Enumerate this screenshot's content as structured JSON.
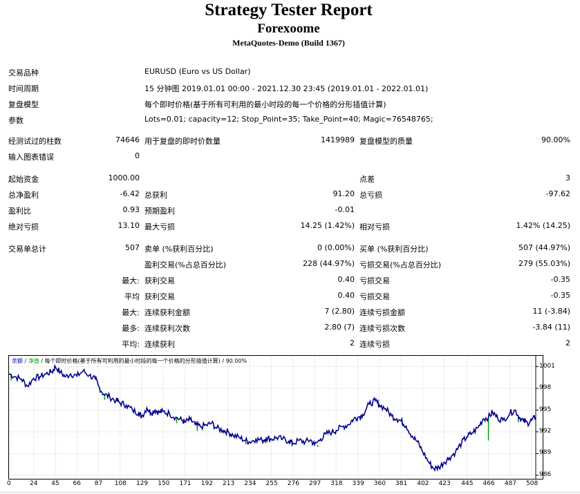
{
  "header": {
    "title": "Strategy Tester Report",
    "subtitle": "Forexoome",
    "build": "MetaQuotes-Demo (Build 1367)"
  },
  "info": [
    {
      "label": "交易品种",
      "value": "EURUSD (Euro vs US Dollar)"
    },
    {
      "label": "时间周期",
      "value": "15 分钟图 2019.01.01 00:00 - 2021.12.30 23:45 (2019.01.01 - 2022.01.01)"
    },
    {
      "label": "复盘模型",
      "value": "每个即时价格(基于所有可利用的最小时段的每一个价格的分形插值计算)"
    },
    {
      "label": "参数",
      "value": "Lots=0.01; capacity=12; Stop_Point=35; Take_Point=40; Magic=76548765;"
    }
  ],
  "stats": {
    "bars_label": "经测试过的柱数",
    "bars_value": "74646",
    "ticks_label": "用于复盘的即时价数量",
    "ticks_value": "1419989",
    "quality_label": "复盘模型的质量",
    "quality_value": "90.00%",
    "errors_label": "输入图表错误",
    "errors_value": "0",
    "deposit_label": "起始资金",
    "deposit_value": "1000.00",
    "spread_label": "点差",
    "spread_value": "3",
    "net_label": "总净盈利",
    "net_value": "-6.42",
    "gross_profit_label": "总获利",
    "gross_profit_value": "91.20",
    "gross_loss_label": "总亏损",
    "gross_loss_value": "-97.62",
    "pf_label": "盈利比",
    "pf_value": "0.93",
    "payoff_label": "预期盈利",
    "payoff_value": "-0.01",
    "abs_dd_label": "绝对亏损",
    "abs_dd_value": "13.10",
    "max_dd_label": "最大亏损",
    "max_dd_value": "14.25 (1.42%)",
    "rel_dd_label": "相对亏损",
    "rel_dd_value": "1.42% (14.25)",
    "total_label": "交易单总计",
    "total_value": "507",
    "short_label": "卖单 (%获利百分比)",
    "short_value": "0 (0.00%)",
    "long_label": "买单 (%获利百分比)",
    "long_value": "507 (44.97%)",
    "win_label": "盈利交易(%占总百分比)",
    "win_value": "228 (44.97%)",
    "loss_label": "亏损交易(%占总百分比)",
    "loss_value": "279 (55.03%)",
    "max_prefix": "最大:",
    "max_win_label": "获利交易",
    "max_win_value": "0.40",
    "max_loss_label": "亏损交易",
    "max_loss_value": "-0.35",
    "avg_prefix": "平均",
    "avg_win_label": "获利交易",
    "avg_win_value": "0.40",
    "avg_loss_label": "亏损交易",
    "avg_loss_value": "-0.35",
    "max2_prefix": "最大:",
    "cons_win_amt_label": "连续获利金额",
    "cons_win_amt_value": "7 (2.80)",
    "cons_loss_amt_label": "连续亏损金额",
    "cons_loss_amt_value": "11 (-3.84)",
    "most_prefix": "最多:",
    "cons_win_cnt_label": "连续获利次数",
    "cons_win_cnt_value": "2.80 (7)",
    "cons_loss_cnt_label": "连续亏损次数",
    "cons_loss_cnt_value": "-3.84 (11)",
    "avg2_prefix": "平均:",
    "avg_cons_win_label": "连续获利",
    "avg_cons_win_value": "2",
    "avg_cons_loss_label": "连续亏损",
    "avg_cons_loss_value": "2"
  },
  "chart_caption": {
    "balance": "余额",
    "sep1": " / ",
    "equity": "净值",
    "rest": " / 每个即时价格(基于所有可利用的最小时段的每一个价格的分形插值计算) / 90.00%"
  },
  "colors": {
    "balance": "#00008b",
    "equity": "#00a000",
    "caption_balance": "#0000cc",
    "caption_equity": "#00a000"
  },
  "chart_data": {
    "type": "line",
    "x_ticks": [
      "0",
      "24",
      "45",
      "66",
      "87",
      "108",
      "129",
      "150",
      "171",
      "192",
      "213",
      "234",
      "255",
      "276",
      "297",
      "318",
      "339",
      "360",
      "381",
      "402",
      "423",
      "445",
      "466",
      "487",
      "508"
    ],
    "y_ticks": [
      "1001",
      "998",
      "995",
      "992",
      "989",
      "986"
    ],
    "xlim": [
      0,
      512
    ],
    "ylim": [
      985.7,
      1002.3
    ],
    "series": [
      {
        "points": [
          [
            0,
            1000.0
          ],
          [
            6,
            999.6
          ],
          [
            12,
            999.3
          ],
          [
            18,
            998.3
          ],
          [
            24,
            999.4
          ],
          [
            30,
            999.6
          ],
          [
            36,
            1000.0
          ],
          [
            42,
            1000.3
          ],
          [
            45,
            1001.0
          ],
          [
            50,
            1000.2
          ],
          [
            55,
            999.6
          ],
          [
            60,
            1000.0
          ],
          [
            66,
            999.7
          ],
          [
            72,
            1000.4
          ],
          [
            78,
            999.8
          ],
          [
            84,
            999.3
          ],
          [
            87,
            998.3
          ],
          [
            92,
            997.2
          ],
          [
            98,
            996.8
          ],
          [
            104,
            996.3
          ],
          [
            108,
            996.0
          ],
          [
            114,
            995.7
          ],
          [
            120,
            995.0
          ],
          [
            126,
            994.6
          ],
          [
            129,
            994.1
          ],
          [
            134,
            995.3
          ],
          [
            138,
            994.6
          ],
          [
            142,
            995.0
          ],
          [
            146,
            994.7
          ],
          [
            150,
            994.8
          ],
          [
            156,
            994.5
          ],
          [
            162,
            994.0
          ],
          [
            168,
            993.6
          ],
          [
            171,
            993.3
          ],
          [
            176,
            993.7
          ],
          [
            181,
            993.0
          ],
          [
            186,
            992.7
          ],
          [
            192,
            992.9
          ],
          [
            197,
            993.2
          ],
          [
            202,
            992.5
          ],
          [
            208,
            992.2
          ],
          [
            213,
            992.0
          ],
          [
            218,
            991.5
          ],
          [
            224,
            991.2
          ],
          [
            230,
            990.8
          ],
          [
            234,
            990.6
          ],
          [
            240,
            991.0
          ],
          [
            246,
            990.8
          ],
          [
            250,
            991.1
          ],
          [
            255,
            991.0
          ],
          [
            260,
            991.2
          ],
          [
            266,
            991.0
          ],
          [
            272,
            990.7
          ],
          [
            276,
            990.4
          ],
          [
            282,
            990.8
          ],
          [
            288,
            990.6
          ],
          [
            293,
            990.9
          ],
          [
            297,
            990.2
          ],
          [
            303,
            991.0
          ],
          [
            308,
            991.7
          ],
          [
            314,
            992.0
          ],
          [
            318,
            992.2
          ],
          [
            324,
            992.7
          ],
          [
            330,
            993.0
          ],
          [
            335,
            993.8
          ],
          [
            339,
            994.0
          ],
          [
            344,
            994.4
          ],
          [
            350,
            995.8
          ],
          [
            356,
            996.3
          ],
          [
            360,
            995.7
          ],
          [
            366,
            995.2
          ],
          [
            372,
            994.2
          ],
          [
            377,
            993.8
          ],
          [
            381,
            993.5
          ],
          [
            386,
            992.8
          ],
          [
            392,
            991.4
          ],
          [
            397,
            990.6
          ],
          [
            402,
            989.3
          ],
          [
            408,
            987.8
          ],
          [
            413,
            986.9
          ],
          [
            418,
            987.1
          ],
          [
            423,
            987.8
          ],
          [
            428,
            988.4
          ],
          [
            434,
            989.2
          ],
          [
            440,
            990.5
          ],
          [
            445,
            991.3
          ],
          [
            450,
            991.8
          ],
          [
            456,
            992.6
          ],
          [
            461,
            993.8
          ],
          [
            466,
            994.0
          ],
          [
            470,
            994.7
          ],
          [
            475,
            993.9
          ],
          [
            480,
            993.6
          ],
          [
            487,
            994.6
          ],
          [
            492,
            995.0
          ],
          [
            496,
            994.0
          ],
          [
            500,
            993.5
          ],
          [
            504,
            993.2
          ],
          [
            508,
            993.6
          ],
          [
            512,
            994.0
          ]
        ]
      }
    ],
    "equity_dips": [
      [
        2,
        999.1
      ],
      [
        93,
        996.4
      ],
      [
        163,
        993.2
      ],
      [
        183,
        992.1
      ],
      [
        230,
        990.3
      ],
      [
        275,
        990.0
      ],
      [
        300,
        989.9
      ],
      [
        382,
        993.0
      ],
      [
        466,
        990.8
      ],
      [
        495,
        993.3
      ]
    ]
  }
}
